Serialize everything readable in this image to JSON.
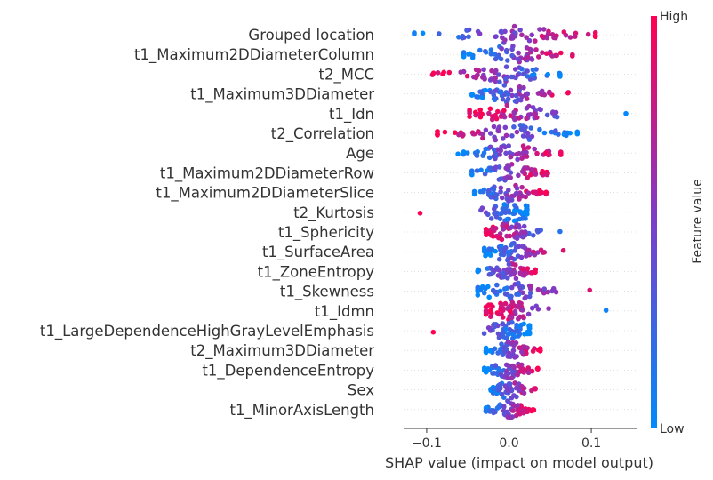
{
  "chart_data": {
    "type": "scatter",
    "subtype": "shap-beeswarm",
    "xlabel": "SHAP value (impact on model output)",
    "xlim": [
      -0.128,
      0.155
    ],
    "xticks": [
      -0.1,
      0.0,
      0.1
    ],
    "xtick_labels": [
      "−0.1",
      "0.0",
      "0.1"
    ],
    "grid": false,
    "colorbar": {
      "label": "Feature value",
      "high_label": "High",
      "low_label": "Low",
      "low_color": "#008afb",
      "high_color": "#ff0052"
    },
    "features": [
      {
        "name": "Grouped location",
        "min": -0.115,
        "max": 0.105,
        "skew": 1
      },
      {
        "name": "t1_Maximum2DDiameterColumn",
        "min": -0.055,
        "max": 0.077,
        "skew": 1
      },
      {
        "name": "t2_MCC",
        "min": -0.093,
        "max": 0.062,
        "skew": -1
      },
      {
        "name": "t1_Maximum3DDiameter",
        "min": -0.045,
        "max": 0.072,
        "skew": 1
      },
      {
        "name": "t1_Idn",
        "min": -0.048,
        "max": 0.142,
        "skew": -1
      },
      {
        "name": "t2_Correlation",
        "min": -0.087,
        "max": 0.083,
        "skew": -1
      },
      {
        "name": "Age",
        "min": -0.062,
        "max": 0.063,
        "skew": 1
      },
      {
        "name": "t1_Maximum2DDiameterRow",
        "min": -0.045,
        "max": 0.047,
        "skew": 1
      },
      {
        "name": "t1_Maximum2DDiameterSlice",
        "min": -0.042,
        "max": 0.045,
        "skew": 1
      },
      {
        "name": "t2_Kurtosis",
        "min": -0.108,
        "max": 0.022,
        "skew": -1
      },
      {
        "name": "t1_Sphericity",
        "min": -0.028,
        "max": 0.062,
        "skew": -1
      },
      {
        "name": "t1_SurfaceArea",
        "min": -0.03,
        "max": 0.066,
        "skew": 1
      },
      {
        "name": "t1_ZoneEntropy",
        "min": -0.038,
        "max": 0.032,
        "skew": 1
      },
      {
        "name": "t1_Skewness",
        "min": -0.038,
        "max": 0.098,
        "skew": 1
      },
      {
        "name": "t1_Idmn",
        "min": -0.028,
        "max": 0.118,
        "skew": -1
      },
      {
        "name": "t1_LargeDependenceHighGrayLevelEmphasis",
        "min": -0.092,
        "max": 0.025,
        "skew": -1
      },
      {
        "name": "t2_Maximum3DDiameter",
        "min": -0.028,
        "max": 0.038,
        "skew": 1
      },
      {
        "name": "t1_DependenceEntropy",
        "min": -0.03,
        "max": 0.035,
        "skew": 1
      },
      {
        "name": "Sex",
        "min": -0.022,
        "max": 0.032,
        "skew": 1
      },
      {
        "name": "t1_MinorAxisLength",
        "min": -0.028,
        "max": 0.03,
        "skew": 1
      }
    ]
  }
}
